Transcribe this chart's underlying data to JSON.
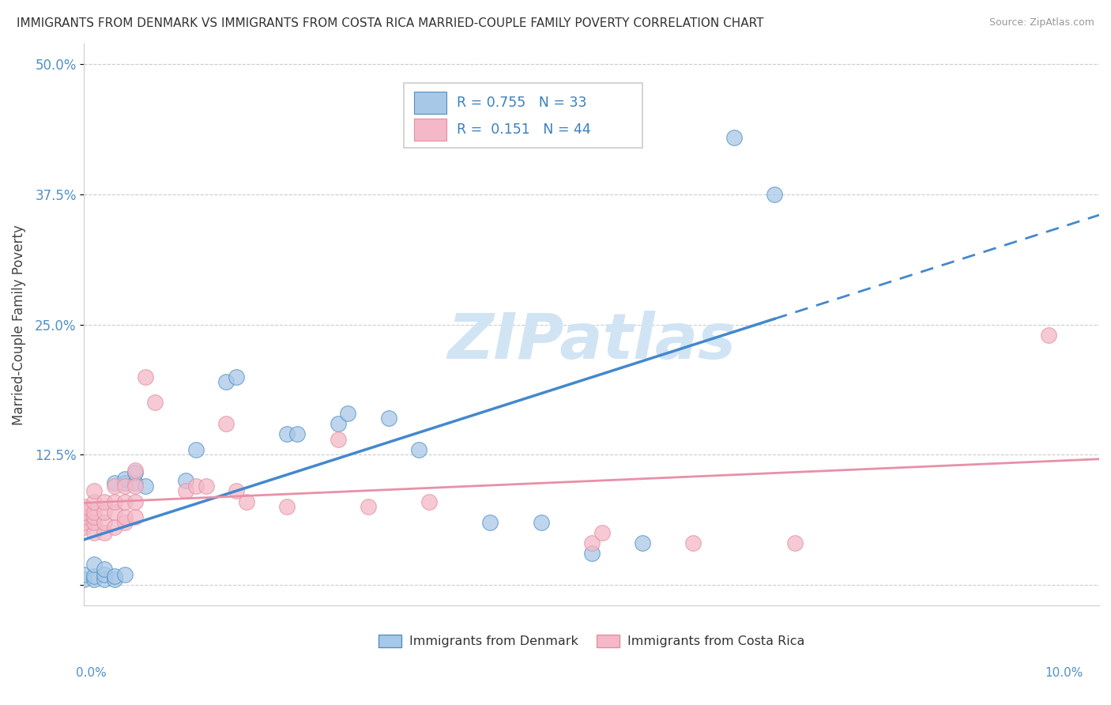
{
  "title": "IMMIGRANTS FROM DENMARK VS IMMIGRANTS FROM COSTA RICA MARRIED-COUPLE FAMILY POVERTY CORRELATION CHART",
  "source": "Source: ZipAtlas.com",
  "ylabel": "Married-Couple Family Poverty",
  "yticks": [
    0.0,
    0.125,
    0.25,
    0.375,
    0.5
  ],
  "ytick_labels": [
    "",
    "12.5%",
    "25.0%",
    "37.5%",
    "50.0%"
  ],
  "xlim": [
    0.0,
    0.1
  ],
  "ylim": [
    -0.02,
    0.52
  ],
  "legend_denmark_R": "0.755",
  "legend_denmark_N": "33",
  "legend_costarica_R": "0.151",
  "legend_costarica_N": "44",
  "denmark_color": "#a8c8e8",
  "costarica_color": "#f4b8c8",
  "denmark_edge_color": "#5090c0",
  "costarica_edge_color": "#e090a0",
  "denmark_line_color": "#4488cc",
  "costarica_line_color": "#e890a8",
  "background_color": "#ffffff",
  "watermark_color": "#d0e4f4",
  "denmark_scatter": [
    [
      0.0,
      0.005
    ],
    [
      0.0,
      0.01
    ],
    [
      0.001,
      0.005
    ],
    [
      0.001,
      0.008
    ],
    [
      0.001,
      0.02
    ],
    [
      0.002,
      0.005
    ],
    [
      0.002,
      0.01
    ],
    [
      0.002,
      0.015
    ],
    [
      0.003,
      0.005
    ],
    [
      0.003,
      0.008
    ],
    [
      0.003,
      0.098
    ],
    [
      0.004,
      0.01
    ],
    [
      0.004,
      0.098
    ],
    [
      0.004,
      0.102
    ],
    [
      0.005,
      0.098
    ],
    [
      0.005,
      0.108
    ],
    [
      0.006,
      0.095
    ],
    [
      0.01,
      0.1
    ],
    [
      0.011,
      0.13
    ],
    [
      0.014,
      0.195
    ],
    [
      0.015,
      0.2
    ],
    [
      0.02,
      0.145
    ],
    [
      0.021,
      0.145
    ],
    [
      0.025,
      0.155
    ],
    [
      0.026,
      0.165
    ],
    [
      0.03,
      0.16
    ],
    [
      0.033,
      0.13
    ],
    [
      0.04,
      0.06
    ],
    [
      0.045,
      0.06
    ],
    [
      0.05,
      0.03
    ],
    [
      0.055,
      0.04
    ],
    [
      0.064,
      0.43
    ],
    [
      0.068,
      0.375
    ]
  ],
  "costarica_scatter": [
    [
      0.0,
      0.055
    ],
    [
      0.0,
      0.06
    ],
    [
      0.0,
      0.065
    ],
    [
      0.0,
      0.07
    ],
    [
      0.0,
      0.075
    ],
    [
      0.001,
      0.05
    ],
    [
      0.001,
      0.06
    ],
    [
      0.001,
      0.065
    ],
    [
      0.001,
      0.07
    ],
    [
      0.001,
      0.08
    ],
    [
      0.001,
      0.09
    ],
    [
      0.002,
      0.05
    ],
    [
      0.002,
      0.06
    ],
    [
      0.002,
      0.07
    ],
    [
      0.002,
      0.08
    ],
    [
      0.003,
      0.055
    ],
    [
      0.003,
      0.07
    ],
    [
      0.003,
      0.08
    ],
    [
      0.003,
      0.095
    ],
    [
      0.004,
      0.06
    ],
    [
      0.004,
      0.065
    ],
    [
      0.004,
      0.08
    ],
    [
      0.004,
      0.095
    ],
    [
      0.005,
      0.065
    ],
    [
      0.005,
      0.08
    ],
    [
      0.005,
      0.095
    ],
    [
      0.005,
      0.11
    ],
    [
      0.006,
      0.2
    ],
    [
      0.007,
      0.175
    ],
    [
      0.01,
      0.09
    ],
    [
      0.011,
      0.095
    ],
    [
      0.012,
      0.095
    ],
    [
      0.014,
      0.155
    ],
    [
      0.015,
      0.09
    ],
    [
      0.016,
      0.08
    ],
    [
      0.02,
      0.075
    ],
    [
      0.025,
      0.14
    ],
    [
      0.028,
      0.075
    ],
    [
      0.034,
      0.08
    ],
    [
      0.05,
      0.04
    ],
    [
      0.051,
      0.05
    ],
    [
      0.06,
      0.04
    ],
    [
      0.07,
      0.04
    ],
    [
      0.095,
      0.24
    ]
  ]
}
